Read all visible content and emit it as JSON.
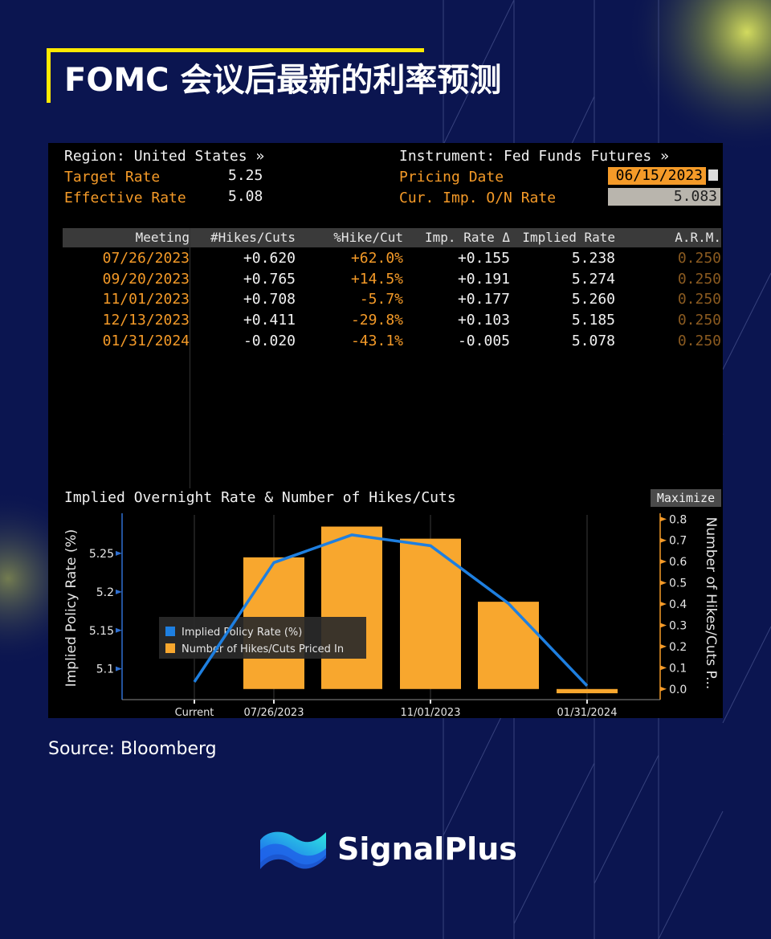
{
  "page": {
    "title": "FOMC 会议后最新的利率预测",
    "source": "Source: Bloomberg",
    "brand": "SignalPlus"
  },
  "terminal": {
    "region": "Region: United States »",
    "target_rate_label": "Target Rate",
    "target_rate_value": "5.25",
    "effective_rate_label": "Effective Rate",
    "effective_rate_value": "5.08",
    "instrument": "Instrument: Fed Funds Futures »",
    "pricing_date_label": "Pricing Date",
    "pricing_date_value": "06/15/2023",
    "cur_imp_label": "Cur. Imp. O/N Rate",
    "cur_imp_value": "5.083",
    "maximize_label": "Maximize"
  },
  "table": {
    "headers": [
      "Meeting",
      "#Hikes/Cuts",
      "%Hike/Cut",
      "Imp. Rate Δ",
      "Implied Rate",
      "A.R.M."
    ],
    "rows": [
      [
        "07/26/2023",
        "+0.620",
        "+62.0%",
        "+0.155",
        "5.238",
        "0.250"
      ],
      [
        "09/20/2023",
        "+0.765",
        "+14.5%",
        "+0.191",
        "5.274",
        "0.250"
      ],
      [
        "11/01/2023",
        "+0.708",
        "-5.7%",
        "+0.177",
        "5.260",
        "0.250"
      ],
      [
        "12/13/2023",
        "+0.411",
        "-29.8%",
        "+0.103",
        "5.185",
        "0.250"
      ],
      [
        "01/31/2024",
        "-0.020",
        "-43.1%",
        "-0.005",
        "5.078",
        "0.250"
      ]
    ]
  },
  "chart_data": {
    "type": "bar",
    "title": "Implied Overnight Rate & Number of Hikes/Cuts",
    "ylabel": "Implied Policy Rate (%)",
    "y2label": "Number of Hikes/Cuts P...",
    "x_ticks": [
      "Current",
      "07/26/2023",
      "11/01/2023",
      "01/31/2024"
    ],
    "ylim": [
      5.06,
      5.3
    ],
    "y_ticks": [
      5.1,
      5.15,
      5.2,
      5.25
    ],
    "y_tick_labels": [
      "5.1",
      "5.15",
      "5.2",
      "5.25"
    ],
    "y2lim": [
      -0.05,
      0.82
    ],
    "y2_ticks": [
      0.0,
      0.1,
      0.2,
      0.3,
      0.4,
      0.5,
      0.6,
      0.7,
      0.8
    ],
    "y2_tick_labels": [
      "0.0",
      "0.1",
      "0.2",
      "0.3",
      "0.4",
      "0.5",
      "0.6",
      "0.7",
      "0.8"
    ],
    "x": [
      "Current",
      "07/26/2023",
      "09/20/2023",
      "11/01/2023",
      "12/13/2023",
      "01/31/2024"
    ],
    "series": [
      {
        "name": "Implied Policy Rate (%)",
        "kind": "line",
        "axis": "left",
        "color": "#1e7fe0",
        "values": [
          5.083,
          5.238,
          5.274,
          5.26,
          5.185,
          5.078
        ]
      },
      {
        "name": "Number of Hikes/Cuts Priced In",
        "kind": "bar",
        "axis": "right",
        "color": "#f8a72e",
        "values": [
          null,
          0.62,
          0.765,
          0.708,
          0.411,
          -0.02
        ]
      }
    ],
    "legend": "bottom-left"
  },
  "colors": {
    "background": "#0b1550",
    "accent": "#ffe900",
    "terminal_orange": "#f49a28",
    "bar": "#f8a72e",
    "line": "#1e7fe0"
  }
}
